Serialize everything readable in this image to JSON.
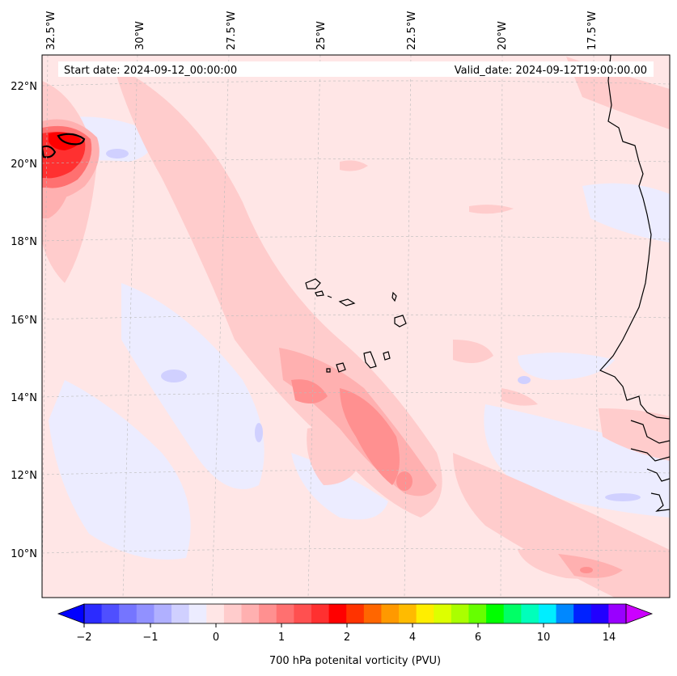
{
  "map": {
    "start_date_label": "Start date: 2024-09-12_00:00:00",
    "valid_date_label": "Valid_date: 2024-09-12T19:00:00.00",
    "lon_labels": [
      "32.5°W",
      "30°W",
      "27.5°W",
      "25°W",
      "22.5°W",
      "20°W",
      "17.5°W"
    ],
    "lat_labels": [
      "22°N",
      "20°N",
      "18°N",
      "16°N",
      "14°N",
      "12°N",
      "10°N"
    ],
    "background_color": "#ffe6e6"
  },
  "colorbar": {
    "label": "700 hPa potenital vorticity (PVU)",
    "tick_labels": [
      "−2",
      "−1",
      "0",
      "1",
      "2",
      "4",
      "6",
      "10",
      "14"
    ],
    "colors": [
      "#0000ff",
      "#2b2bff",
      "#4f4fff",
      "#7575ff",
      "#9191ff",
      "#b0b0ff",
      "#d0d0ff",
      "#ececff",
      "#ffe6e6",
      "#ffcccc",
      "#ffb0b0",
      "#ff9090",
      "#ff7070",
      "#ff5050",
      "#ff3030",
      "#ff0000",
      "#ff3300",
      "#ff6600",
      "#ff9900",
      "#ffbb00",
      "#ffee00",
      "#ddff00",
      "#aaff00",
      "#66ff00",
      "#00ff00",
      "#00ff66",
      "#00ffbb",
      "#00eeff",
      "#0088ff",
      "#0022ff",
      "#2200ff",
      "#9900ff",
      "#cc00ff"
    ]
  }
}
